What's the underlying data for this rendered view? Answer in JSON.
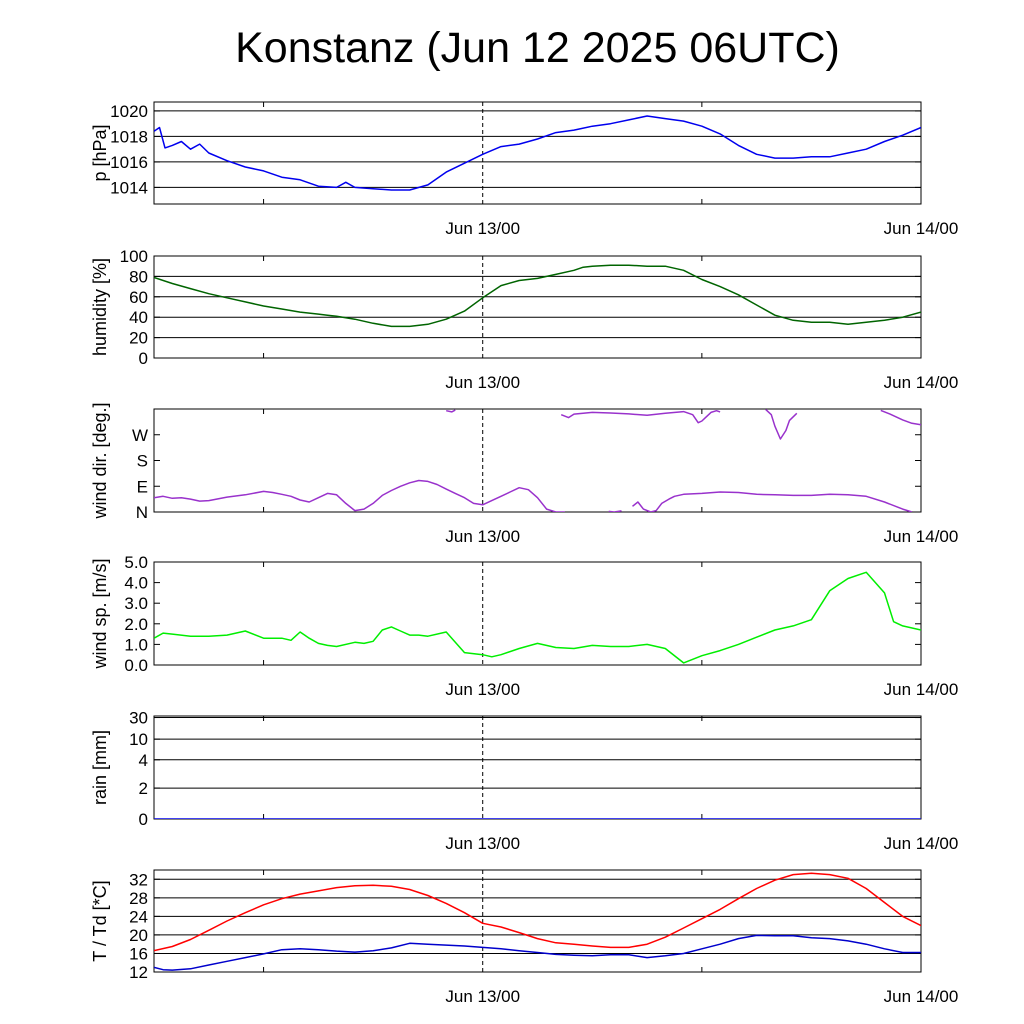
{
  "title": "Konstanz (Jun 12 2025 06UTC)",
  "x_tick_labels": [
    "Jun 13/00",
    "Jun 14/00"
  ],
  "chart_data": [
    {
      "type": "line",
      "ylabel": "p [hPa]",
      "x_range": [
        0,
        42
      ],
      "ylim": [
        1012.7,
        1020.7
      ],
      "yticks": [
        1014,
        1016,
        1018,
        1020
      ],
      "ytick_labels": [
        "1014",
        "1016",
        "1018",
        "1020"
      ],
      "grid": true,
      "series": [
        {
          "color": "#0000ee",
          "x": [
            0,
            0.3,
            0.6,
            1,
            1.5,
            2,
            2.5,
            3,
            4,
            5,
            6,
            7,
            8,
            9,
            10,
            10.5,
            11,
            12,
            13,
            14,
            15,
            16,
            17,
            18,
            19,
            20,
            21,
            22,
            23,
            24,
            25,
            26,
            27,
            28,
            29,
            30,
            31,
            32,
            33,
            34,
            35,
            36,
            37,
            38,
            39,
            40,
            41,
            42
          ],
          "values": [
            1018.4,
            1018.7,
            1017.1,
            1017.3,
            1017.6,
            1017.0,
            1017.4,
            1016.7,
            1016.1,
            1015.6,
            1015.3,
            1014.8,
            1014.6,
            1014.1,
            1014.0,
            1014.4,
            1014.0,
            1013.9,
            1013.8,
            1013.8,
            1014.2,
            1015.2,
            1015.9,
            1016.6,
            1017.2,
            1017.4,
            1017.8,
            1018.3,
            1018.5,
            1018.8,
            1019.0,
            1019.3,
            1019.6,
            1019.4,
            1019.2,
            1018.8,
            1018.2,
            1017.3,
            1016.6,
            1016.3,
            1016.3,
            1016.4,
            1016.4,
            1016.7,
            1017.0,
            1017.6,
            1018.1,
            1018.7
          ]
        }
      ]
    },
    {
      "type": "line",
      "ylabel": "humidity [%]",
      "x_range": [
        0,
        42
      ],
      "ylim": [
        0,
        100
      ],
      "yticks": [
        0,
        20,
        40,
        60,
        80,
        100
      ],
      "ytick_labels": [
        "0",
        "20",
        "40",
        "60",
        "80",
        "100"
      ],
      "grid": true,
      "series": [
        {
          "color": "#006400",
          "x": [
            0,
            1,
            2,
            3,
            4,
            5,
            6,
            7,
            8,
            9,
            9.5,
            10,
            11,
            12,
            13,
            14,
            15,
            16,
            17,
            18,
            19,
            20,
            21,
            22,
            23,
            23.5,
            24,
            25,
            26,
            27,
            28,
            29,
            30,
            31,
            32,
            33,
            34,
            35,
            36,
            37,
            38,
            39,
            40,
            41,
            42
          ],
          "values": [
            79,
            73,
            68,
            63,
            59,
            55,
            51,
            48,
            45,
            43,
            42,
            41,
            38,
            34,
            31,
            31,
            33,
            38,
            46,
            59,
            71,
            76,
            78,
            82,
            86,
            89,
            90,
            91,
            91,
            90,
            90,
            86,
            77,
            70,
            62,
            52,
            42,
            37,
            35,
            35,
            33,
            35,
            37,
            40,
            45
          ]
        }
      ]
    },
    {
      "type": "line",
      "ylabel": "wind dir. [deg.]",
      "x_range": [
        0,
        42
      ],
      "ylim": [
        0,
        360
      ],
      "yticks": [
        0,
        90,
        180,
        270
      ],
      "ytick_labels": [
        "N",
        "E",
        "S",
        "W"
      ],
      "grid": false,
      "series": [
        {
          "color": "#9932cc",
          "segments": [
            {
              "x": [
                0,
                0.5,
                1,
                1.5,
                2,
                2.5,
                3,
                4,
                5,
                6,
                6.5,
                7,
                7.5,
                8,
                8.5,
                9,
                9.5,
                10,
                10.5,
                11,
                11.5,
                12,
                12.5,
                13,
                13.5,
                14,
                14.5,
                15,
                15.5,
                16,
                16.5,
                17,
                17.5,
                18,
                18.5,
                19,
                19.5,
                20,
                20.5,
                21,
                21.5,
                22,
                22.5
              ],
              "values": [
                50,
                55,
                48,
                50,
                45,
                38,
                40,
                52,
                60,
                72,
                68,
                62,
                55,
                42,
                35,
                50,
                65,
                60,
                30,
                5,
                10,
                30,
                58,
                75,
                90,
                102,
                110,
                107,
                96,
                80,
                65,
                50,
                30,
                25,
                40,
                55,
                70,
                85,
                78,
                50,
                10,
                0,
                0
              ]
            },
            {
              "x": [
                24.9,
                25.2,
                25.6
              ],
              "values": [
                2,
                0,
                4
              ]
            },
            {
              "x": [
                26.2,
                26.5,
                26.8,
                27.2,
                27.5,
                27.8,
                28.2,
                28.5,
                29,
                30,
                31,
                32,
                33,
                34,
                35,
                36,
                37,
                38,
                39,
                40,
                41,
                41.5
              ],
              "values": [
                20,
                35,
                10,
                0,
                5,
                30,
                45,
                55,
                62,
                65,
                70,
                68,
                62,
                60,
                58,
                58,
                62,
                60,
                55,
                35,
                10,
                0
              ]
            },
            {
              "x": [
                16,
                16.3,
                16.5
              ],
              "values": [
                354,
                350,
                356
              ]
            },
            {
              "x": [
                22.3,
                22.7,
                23,
                24,
                25,
                26,
                27,
                28,
                29,
                29.5,
                29.8,
                30,
                30.2,
                30.5,
                30.8,
                31
              ],
              "values": [
                340,
                330,
                342,
                348,
                346,
                343,
                338,
                345,
                351,
                340,
                312,
                318,
                330,
                348,
                354,
                350
              ]
            },
            {
              "x": [
                33.5,
                33.8,
                34,
                34.3,
                34.6,
                34.8,
                35.2
              ],
              "values": [
                358,
                340,
                300,
                255,
                285,
                320,
                345
              ]
            },
            {
              "x": [
                39.8,
                40.3,
                41,
                41.5,
                42
              ],
              "values": [
                355,
                342,
                322,
                310,
                305
              ]
            }
          ]
        }
      ]
    },
    {
      "type": "line",
      "ylabel": "wind sp. [m/s]",
      "x_range": [
        0,
        42
      ],
      "ylim": [
        0,
        5
      ],
      "yticks": [
        0,
        1,
        2,
        3,
        4,
        5
      ],
      "ytick_labels": [
        "0.0",
        "1.0",
        "2.0",
        "3.0",
        "4.0",
        "5.0"
      ],
      "grid": false,
      "series": [
        {
          "color": "#00ee00",
          "x": [
            0,
            0.5,
            1,
            2,
            3,
            4,
            5,
            6,
            7,
            7.5,
            8,
            8.5,
            9,
            9.5,
            10,
            11,
            11.5,
            12,
            12.5,
            13,
            13.5,
            14,
            14.5,
            15,
            16,
            17,
            18,
            18.5,
            19,
            20,
            21,
            22,
            23,
            24,
            25,
            26,
            27,
            28,
            29,
            30,
            31,
            32,
            33,
            34,
            35,
            36,
            37,
            38,
            39,
            40,
            40.5,
            41,
            42
          ],
          "values": [
            1.3,
            1.55,
            1.5,
            1.4,
            1.4,
            1.45,
            1.65,
            1.3,
            1.3,
            1.2,
            1.6,
            1.3,
            1.05,
            0.95,
            0.9,
            1.1,
            1.05,
            1.15,
            1.7,
            1.85,
            1.65,
            1.45,
            1.45,
            1.4,
            1.6,
            0.6,
            0.5,
            0.4,
            0.5,
            0.8,
            1.05,
            0.85,
            0.8,
            0.95,
            0.9,
            0.9,
            1.0,
            0.8,
            0.1,
            0.45,
            0.7,
            1.0,
            1.35,
            1.7,
            1.9,
            2.2,
            3.6,
            4.2,
            4.5,
            3.5,
            2.1,
            1.9,
            1.7
          ]
        }
      ]
    },
    {
      "type": "line",
      "ylabel": "rain [mm]",
      "x_range": [
        0,
        42
      ],
      "ylim": [
        0,
        30
      ],
      "yticks": [
        0,
        2,
        4,
        10,
        30
      ],
      "ytick_labels": [
        "0",
        "2",
        "4",
        "10",
        "30"
      ],
      "grid": true,
      "series": [
        {
          "color": "#0000ee",
          "x": [
            0,
            42
          ],
          "values": [
            0,
            0
          ]
        }
      ]
    },
    {
      "type": "line",
      "ylabel": "T / Td [*C]",
      "x_range": [
        0,
        42
      ],
      "ylim": [
        12,
        34
      ],
      "yticks": [
        12,
        16,
        20,
        24,
        28,
        32
      ],
      "ytick_labels": [
        "12",
        "16",
        "20",
        "24",
        "28",
        "32"
      ],
      "grid": true,
      "series": [
        {
          "color": "#ff0000",
          "x": [
            0,
            1,
            2,
            3,
            4,
            5,
            6,
            7,
            8,
            9,
            10,
            11,
            12,
            13,
            14,
            15,
            16,
            17,
            18,
            19,
            20,
            21,
            22,
            23,
            24,
            25,
            26,
            27,
            28,
            29,
            30,
            31,
            32,
            33,
            34,
            35,
            36,
            37,
            38,
            39,
            40,
            41,
            42
          ],
          "values": [
            16.6,
            17.5,
            19.0,
            21.0,
            23.0,
            24.8,
            26.5,
            27.8,
            28.8,
            29.5,
            30.2,
            30.6,
            30.7,
            30.5,
            29.8,
            28.5,
            26.8,
            24.8,
            22.5,
            21.7,
            20.5,
            19.2,
            18.3,
            18.0,
            17.6,
            17.3,
            17.3,
            18.0,
            19.5,
            21.5,
            23.5,
            25.5,
            27.8,
            30.0,
            31.8,
            33.0,
            33.3,
            33.0,
            32.2,
            30.0,
            27.0,
            24.0,
            22.0
          ]
        },
        {
          "color": "#0000cc",
          "x": [
            0,
            0.5,
            1,
            2,
            3,
            4,
            5,
            6,
            7,
            8,
            9,
            10,
            11,
            12,
            13,
            14,
            15,
            16,
            17,
            18,
            19,
            20,
            21,
            22,
            23,
            24,
            25,
            26,
            27,
            28,
            29,
            30,
            31,
            32,
            33,
            34,
            35,
            36,
            37,
            38,
            39,
            40,
            41,
            42
          ],
          "values": [
            13.0,
            12.5,
            12.4,
            12.7,
            13.5,
            14.3,
            15.1,
            15.9,
            16.8,
            17.0,
            16.8,
            16.5,
            16.3,
            16.6,
            17.2,
            18.2,
            18.0,
            17.8,
            17.6,
            17.3,
            17.0,
            16.6,
            16.2,
            15.8,
            15.6,
            15.5,
            15.7,
            15.7,
            15.1,
            15.5,
            16.0,
            17.0,
            18.0,
            19.2,
            19.9,
            19.8,
            19.8,
            19.4,
            19.2,
            18.7,
            18.0,
            17.0,
            16.2,
            16.2
          ]
        }
      ]
    }
  ]
}
